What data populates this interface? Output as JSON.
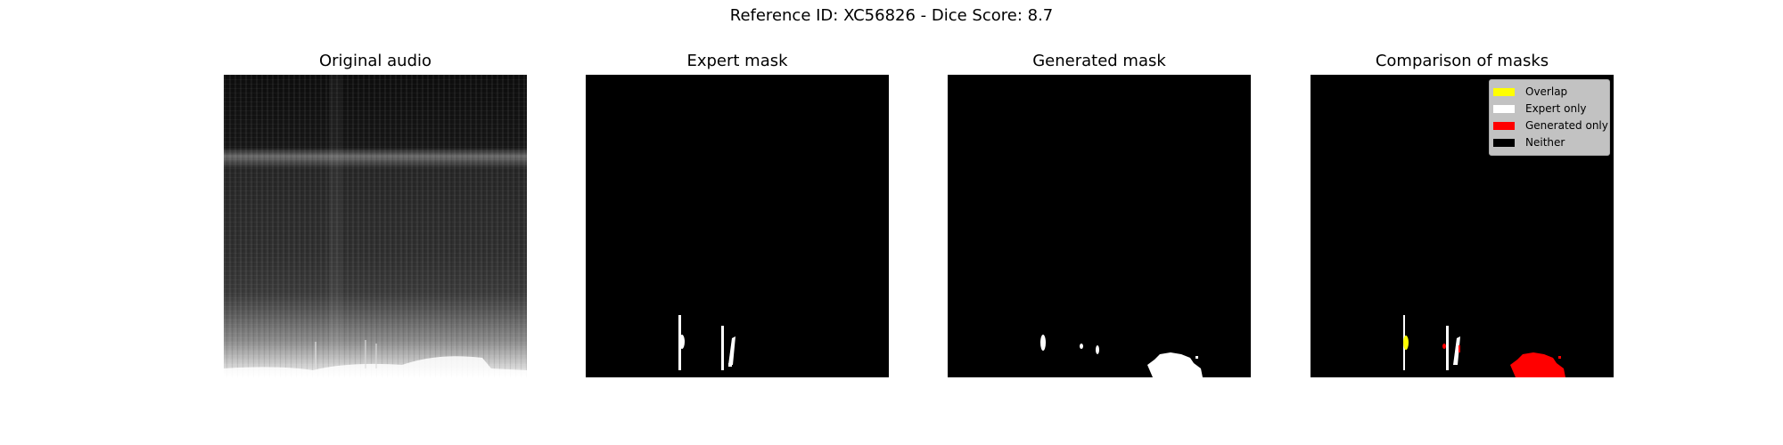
{
  "figure": {
    "suptitle": "Reference ID: XC56826 - Dice Score: 8.7"
  },
  "panels": [
    {
      "title": "Original audio"
    },
    {
      "title": "Expert mask"
    },
    {
      "title": "Generated mask"
    },
    {
      "title": "Comparison of masks"
    }
  ],
  "legend": {
    "items": [
      {
        "label": "Overlap",
        "color": "#ffff00"
      },
      {
        "label": "Expert only",
        "color": "#ffffff"
      },
      {
        "label": "Generated only",
        "color": "#ff0000"
      },
      {
        "label": "Neither",
        "color": "#000000"
      }
    ]
  }
}
